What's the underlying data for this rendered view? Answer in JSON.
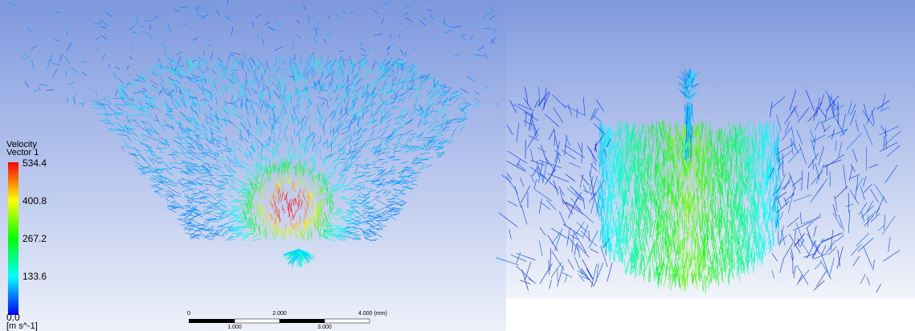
{
  "legend": {
    "title": "Velocity",
    "subtitle": "Vector 1",
    "labels": [
      "534.4",
      "400.8",
      "267.2",
      "133.6",
      "0.0"
    ],
    "unit": "[m s^-1]"
  },
  "scale_bar": {
    "top_labels": [
      "0",
      "2.000",
      "4.000 (mm)"
    ],
    "bottom_labels": [
      "1.000",
      "3.000"
    ]
  }
}
